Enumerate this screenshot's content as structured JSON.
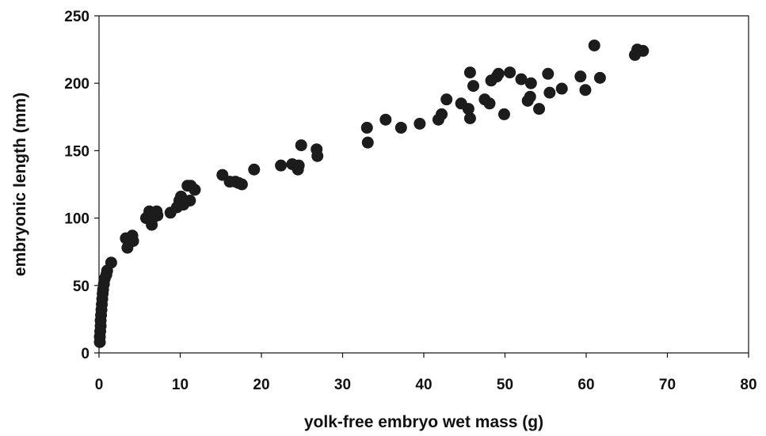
{
  "chart_data": {
    "type": "scatter",
    "title": "",
    "xlabel": "yolk-free embryo wet mass (g)",
    "ylabel": "embryonic length (mm)",
    "xlim": [
      0,
      80
    ],
    "ylim": [
      0,
      250
    ],
    "xticks": [
      0,
      10,
      20,
      30,
      40,
      50,
      60,
      70,
      80
    ],
    "yticks": [
      0,
      50,
      100,
      150,
      200,
      250
    ],
    "grid": false,
    "legend": "none",
    "marker_color": "#1c1c1c",
    "series": [
      {
        "points": [
          [
            0.1,
            8
          ],
          [
            0.1,
            12
          ],
          [
            0.15,
            16
          ],
          [
            0.2,
            20
          ],
          [
            0.2,
            24
          ],
          [
            0.25,
            28
          ],
          [
            0.3,
            32
          ],
          [
            0.35,
            36
          ],
          [
            0.4,
            40
          ],
          [
            0.45,
            44
          ],
          [
            0.5,
            47
          ],
          [
            0.6,
            51
          ],
          [
            0.7,
            55
          ],
          [
            0.9,
            58
          ],
          [
            1.0,
            61
          ],
          [
            1.5,
            67
          ],
          [
            3.3,
            85
          ],
          [
            3.5,
            78
          ],
          [
            4.1,
            87
          ],
          [
            4.2,
            83
          ],
          [
            5.8,
            100
          ],
          [
            6.2,
            105
          ],
          [
            6.5,
            95
          ],
          [
            6.8,
            101
          ],
          [
            7.1,
            105
          ],
          [
            7.2,
            102
          ],
          [
            8.8,
            104
          ],
          [
            9.6,
            108
          ],
          [
            9.9,
            113
          ],
          [
            10.1,
            116
          ],
          [
            10.4,
            110
          ],
          [
            10.9,
            124
          ],
          [
            11.2,
            113
          ],
          [
            11.3,
            124
          ],
          [
            11.8,
            121
          ],
          [
            15.2,
            132
          ],
          [
            16.1,
            127
          ],
          [
            16.8,
            127
          ],
          [
            17.2,
            126
          ],
          [
            17.6,
            125
          ],
          [
            19.1,
            136
          ],
          [
            22.4,
            139
          ],
          [
            23.8,
            140
          ],
          [
            24.5,
            136
          ],
          [
            24.6,
            139
          ],
          [
            24.9,
            154
          ],
          [
            26.8,
            151
          ],
          [
            26.9,
            146
          ],
          [
            33.0,
            167
          ],
          [
            33.1,
            156
          ],
          [
            35.3,
            173
          ],
          [
            37.2,
            167
          ],
          [
            39.5,
            170
          ],
          [
            41.8,
            173
          ],
          [
            42.2,
            177
          ],
          [
            42.8,
            188
          ],
          [
            44.6,
            185
          ],
          [
            45.5,
            181
          ],
          [
            45.7,
            174
          ],
          [
            45.7,
            208
          ],
          [
            46.1,
            198
          ],
          [
            47.5,
            188
          ],
          [
            48.1,
            185
          ],
          [
            48.3,
            202
          ],
          [
            49.0,
            205
          ],
          [
            49.2,
            207
          ],
          [
            49.9,
            177
          ],
          [
            50.6,
            208
          ],
          [
            52.0,
            203
          ],
          [
            52.8,
            187
          ],
          [
            53.1,
            190
          ],
          [
            53.2,
            200
          ],
          [
            54.2,
            181
          ],
          [
            55.3,
            207
          ],
          [
            55.5,
            193
          ],
          [
            57.0,
            196
          ],
          [
            59.3,
            205
          ],
          [
            59.9,
            195
          ],
          [
            61.0,
            228
          ],
          [
            61.7,
            204
          ],
          [
            66.0,
            221
          ],
          [
            66.3,
            225
          ],
          [
            67.0,
            224
          ]
        ]
      }
    ]
  }
}
